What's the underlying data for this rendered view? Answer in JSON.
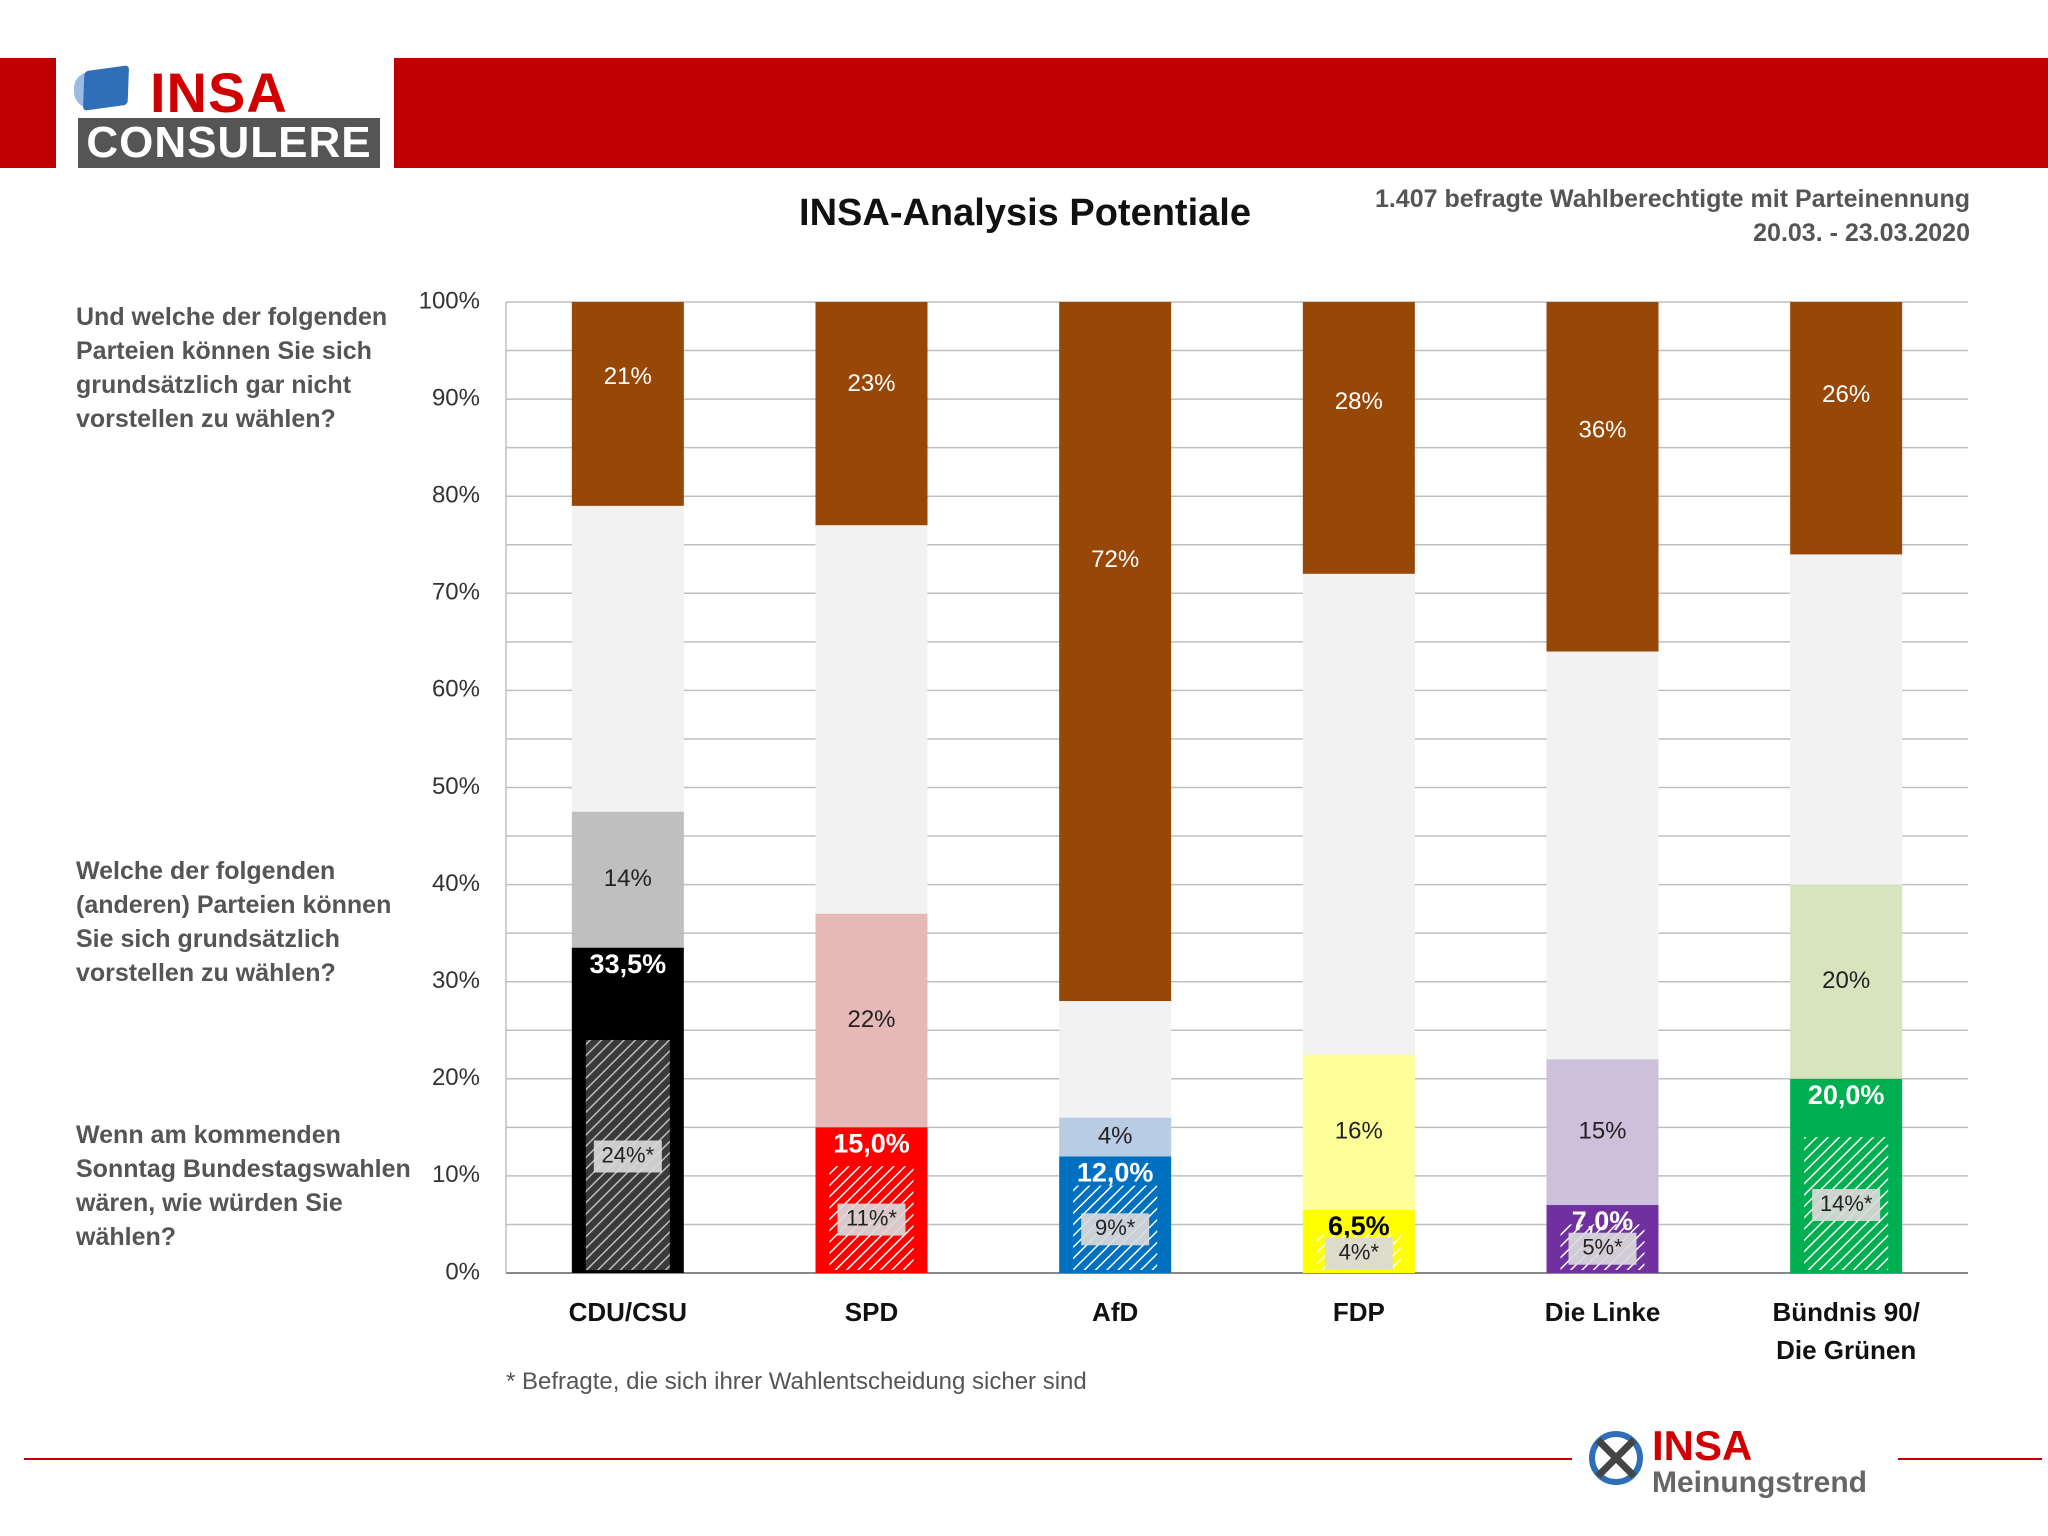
{
  "header": {
    "logo_top": "INSA",
    "logo_bottom": "CONSULERE",
    "title": "INSA-Analysis Potentiale",
    "sample_line1": "1.407 befragte Wahlberechtigte mit Parteinennung",
    "sample_line2": "20.03. - 23.03.2020"
  },
  "questions": {
    "q1": "Und welche der folgenden Parteien können Sie sich grundsätzlich gar nicht vorstellen zu wählen?",
    "q2": "Welche der folgenden (anderen) Parteien können Sie sich grundsätzlich vorstellen zu wählen?",
    "q3": "Wenn am kommenden Sonntag Bundestagswahlen wären, wie würden Sie wählen?"
  },
  "footnote": "* Befragte, die sich ihrer Wahlentscheidung sicher sind",
  "footer_logo": {
    "top": "INSA",
    "bottom": "Meinungstrend"
  },
  "chart_data": {
    "type": "bar",
    "stacked": true,
    "ylim": [
      0,
      100
    ],
    "yticks": [
      "0%",
      "10%",
      "20%",
      "30%",
      "40%",
      "50%",
      "60%",
      "70%",
      "80%",
      "90%",
      "100%"
    ],
    "grid": true,
    "categories": [
      "CDU/CSU",
      "SPD",
      "AfD",
      "FDP",
      "Die Linke",
      "Bündnis 90/\nDie Grünen"
    ],
    "vote": [
      33.5,
      15.0,
      12.0,
      6.5,
      7.0,
      20.0
    ],
    "vote_labels": [
      "33,5%",
      "15,0%",
      "12,0%",
      "6,5%",
      "7,0%",
      "20,0%"
    ],
    "certain": [
      24,
      11,
      9,
      4,
      5,
      14
    ],
    "certain_labels": [
      "24%*",
      "11%*",
      "9%*",
      "4%*",
      "5%*",
      "14%*"
    ],
    "potential": [
      14,
      22,
      4,
      16,
      15,
      20
    ],
    "potential_labels": [
      "14%",
      "22%",
      "4%",
      "16%",
      "15%",
      "20%"
    ],
    "not_vote": [
      21,
      23,
      72,
      28,
      36,
      26
    ],
    "not_vote_labels": [
      "21%",
      "23%",
      "72%",
      "28%",
      "36%",
      "26%"
    ],
    "colors": {
      "vote": [
        "#000000",
        "#ff0000",
        "#0070c0",
        "#ffff00",
        "#7030a0",
        "#00b050"
      ],
      "potential": [
        "#bfbfbf",
        "#e6b9b8",
        "#b8cce4",
        "#ffff99",
        "#ccc0da",
        "#d7e4bd"
      ],
      "neutral": "#f2f2f2",
      "not_vote": "#974706"
    }
  }
}
